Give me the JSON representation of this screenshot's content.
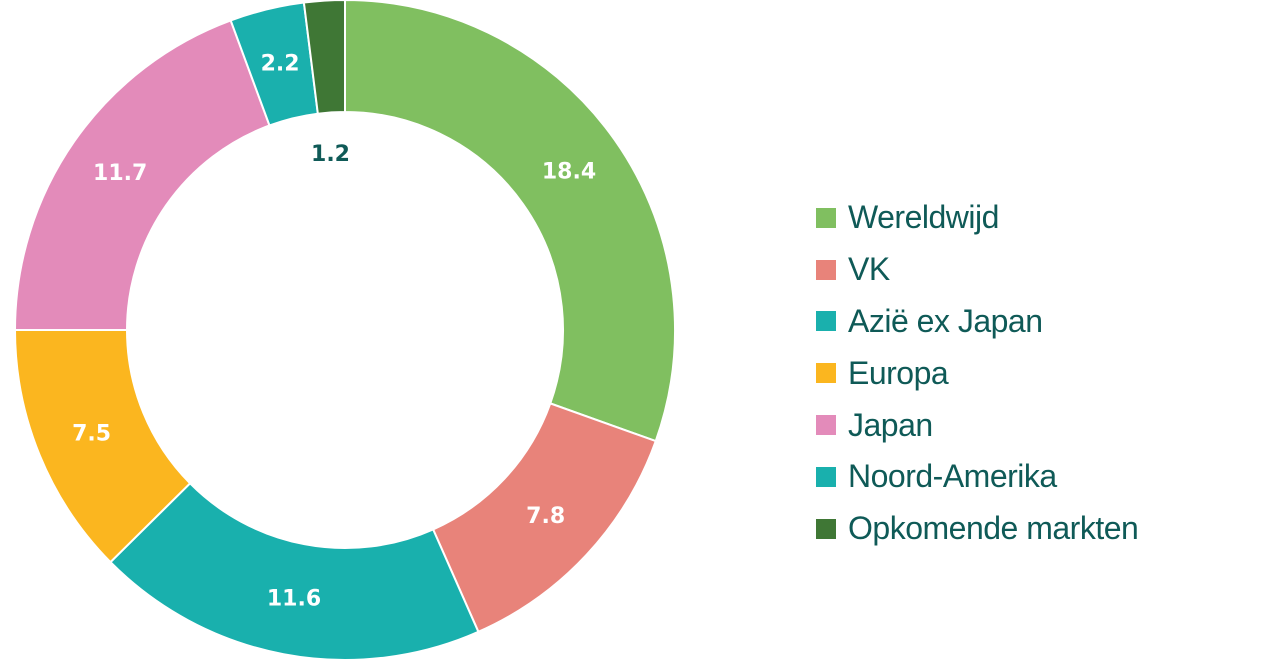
{
  "chart_data": {
    "type": "pie",
    "donut": true,
    "start": "top",
    "direction": "clockwise",
    "legend_position": "right",
    "slices": [
      {
        "name": "Wereldwijd",
        "value": 18.4,
        "label": "18.4",
        "color": "#80bf60"
      },
      {
        "name": "VK",
        "value": 7.8,
        "label": "7.8",
        "color": "#e8837a"
      },
      {
        "name": "Noord-Amerika",
        "value": 11.6,
        "label": "11.6",
        "color": "#19b0ad"
      },
      {
        "name": "Europa",
        "value": 7.5,
        "label": "7.5",
        "color": "#fbb61f"
      },
      {
        "name": "Japan",
        "value": 11.7,
        "label": "11.7",
        "color": "#e38bba"
      },
      {
        "name": "Azië ex Japan",
        "value": 2.2,
        "label": "2.2",
        "color": "#1ab0ad"
      },
      {
        "name": "Opkomende markten",
        "value": 1.2,
        "label": "1.2",
        "color": "#3f7735",
        "label_placement": "inside-hole"
      }
    ],
    "legend": [
      {
        "label": "Wereldwijd",
        "color": "#80bf60"
      },
      {
        "label": "VK",
        "color": "#e8837a"
      },
      {
        "label": "Azië ex Japan",
        "color": "#1ab0ad"
      },
      {
        "label": "Europa",
        "color": "#fbb61f"
      },
      {
        "label": "Japan",
        "color": "#e38bba"
      },
      {
        "label": "Noord-Amerika",
        "color": "#19b0ad"
      },
      {
        "label": "Opkomende markten",
        "color": "#3f7735"
      }
    ]
  }
}
